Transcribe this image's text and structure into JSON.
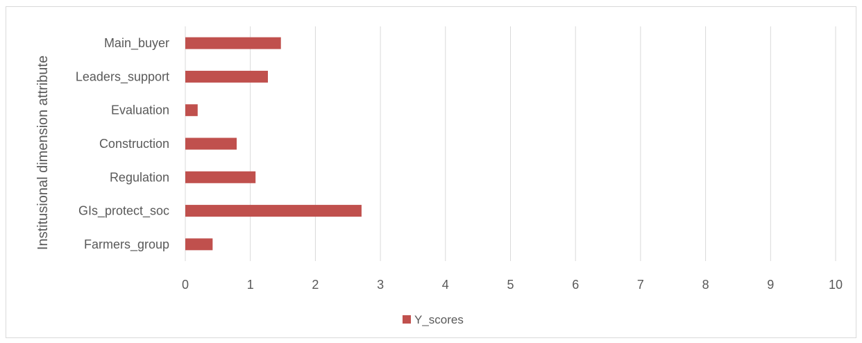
{
  "chart_data": {
    "type": "bar",
    "orientation": "horizontal",
    "categories": [
      "Main_buyer",
      "Leaders_support",
      "Evaluation",
      "Construction",
      "Regulation",
      "GIs_protect_soc",
      "Farmers_group"
    ],
    "series": [
      {
        "name": "Y_scores",
        "values": [
          1.47,
          1.27,
          0.19,
          0.79,
          1.08,
          2.71,
          0.42
        ],
        "color": "#c0504d"
      }
    ],
    "xlabel": "",
    "ylabel": "Institusional dimension attribute",
    "xlim": [
      0,
      10
    ],
    "xticks": [
      0,
      1,
      2,
      3,
      4,
      5,
      6,
      7,
      8,
      9,
      10
    ],
    "grid": true,
    "legend_position": "bottom",
    "gridline_color": "#d9d9d9",
    "text_color": "#595959"
  }
}
